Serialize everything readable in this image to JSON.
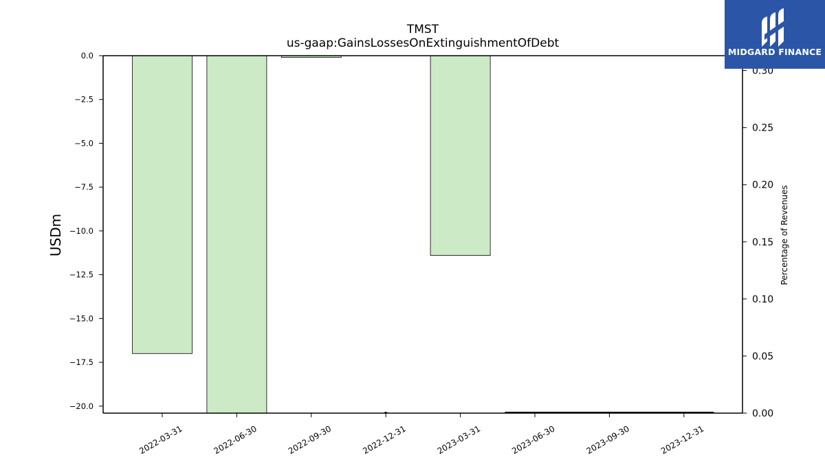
{
  "chart_data": {
    "type": "bar",
    "title": "TMST",
    "subtitle": "us-gaap:GainsLossesOnExtinguishmentOfDebt",
    "ylabel": "USDm",
    "y2label": "Percentage of Revenues",
    "categories": [
      "2022-03-31",
      "2022-06-30",
      "2022-09-30",
      "2022-12-31",
      "2023-03-31",
      "2023-06-30",
      "2023-09-30",
      "2023-12-31"
    ],
    "values": [
      -17.0,
      -20.4,
      -0.1,
      0.0,
      -11.4,
      0.0,
      0.0,
      0.0
    ],
    "ylim": [
      -20.4,
      0.0
    ],
    "yticks": [
      0.0,
      -2.5,
      -5.0,
      -7.5,
      -10.0,
      -12.5,
      -15.0,
      -17.5,
      -20.0
    ],
    "ytick_labels": [
      "0.0",
      "−2.5",
      "−5.0",
      "−7.5",
      "−10.0",
      "−12.5",
      "−15.0",
      "−17.5",
      "−20.0"
    ],
    "y2lim": [
      0.0,
      0.313
    ],
    "y2ticks": [
      0.0,
      0.05,
      0.1,
      0.15,
      0.2,
      0.25,
      0.3
    ],
    "y2tick_labels": [
      "0.00",
      "0.05",
      "0.10",
      "0.15",
      "0.20",
      "0.25",
      "0.30"
    ],
    "percent_values": [
      0.0,
      0.0,
      0.0,
      0.0,
      0.0,
      0.0,
      0.0,
      0.0
    ],
    "bar_color": "#cdeac6",
    "grid": false
  },
  "logo": {
    "text": "MIDGARD FINANCE",
    "color": "#2b56a8"
  }
}
